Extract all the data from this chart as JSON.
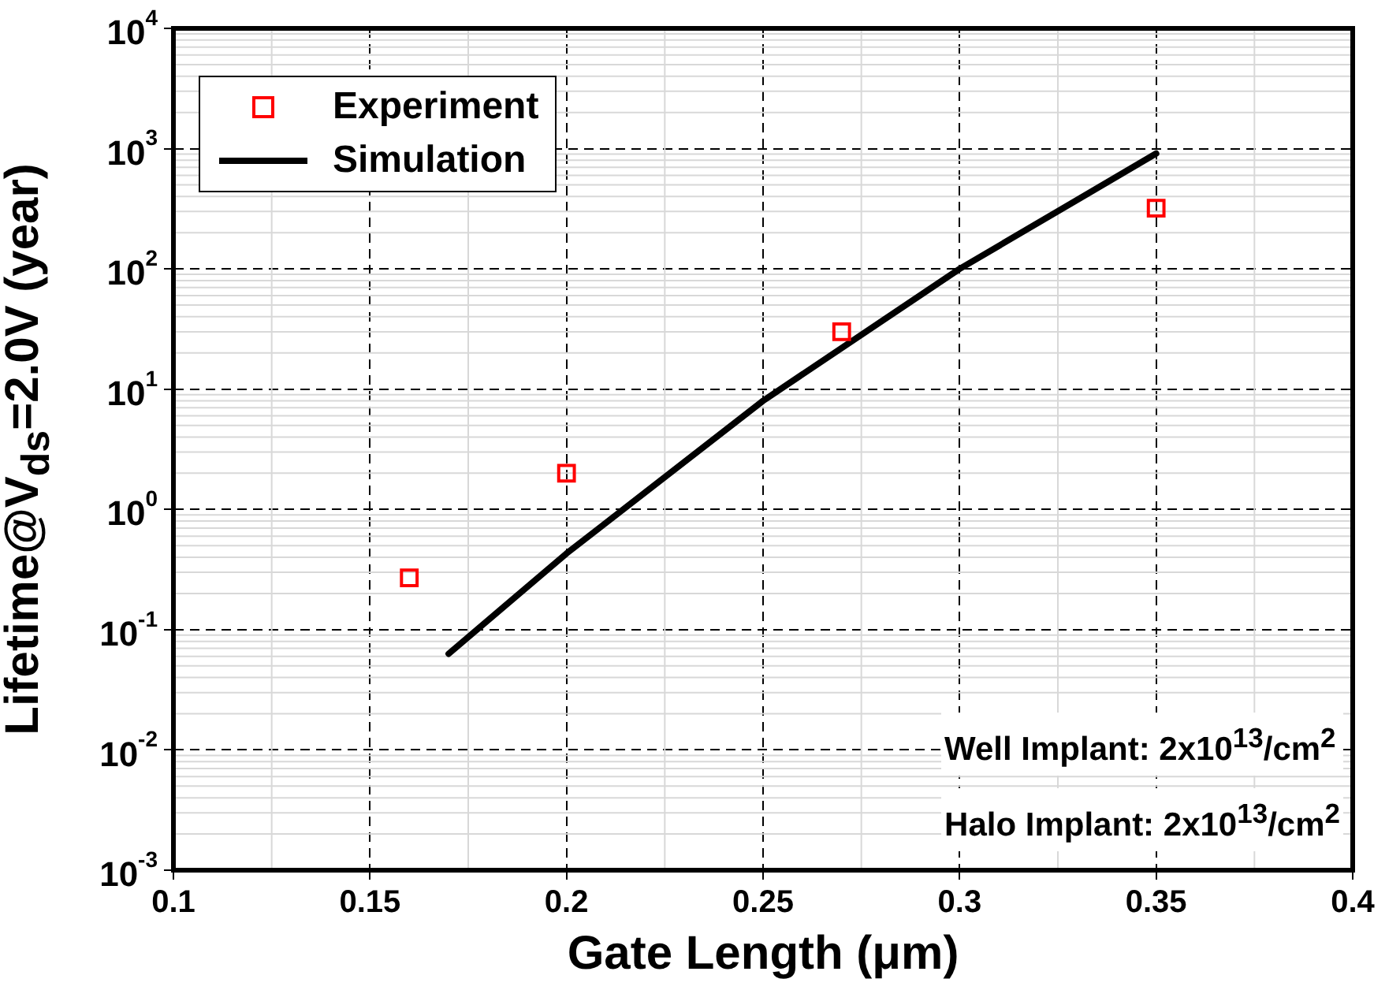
{
  "chart_data": {
    "type": "scatter",
    "xlabel": "Gate Length (μm)",
    "ylabel": "Lifetime@V$_{ds}$=2.0V (year)",
    "xlim": [
      0.1,
      0.4
    ],
    "xticks": [
      0.1,
      0.15,
      0.2,
      0.25,
      0.3,
      0.35,
      0.4
    ],
    "ylim": [
      0.001,
      10000
    ],
    "yticks": [
      {
        "value": 0.001,
        "label": "10$^{-3}$"
      },
      {
        "value": 0.01,
        "label": "10$^{-2}$"
      },
      {
        "value": 0.1,
        "label": "10$^{-1}$"
      },
      {
        "value": 1,
        "label": "10$^{0}$"
      },
      {
        "value": 10,
        "label": "10$^{1}$"
      },
      {
        "value": 100,
        "label": "10$^{2}$"
      },
      {
        "value": 1000,
        "label": "10$^{3}$"
      },
      {
        "value": 10000,
        "label": "10$^{4}$"
      }
    ],
    "log": "y",
    "grid": true,
    "legend": "top left",
    "series": [
      {
        "name": "Experiment",
        "type": "scatter",
        "marker": "square",
        "color": "#ff0000",
        "x": [
          0.16,
          0.2,
          0.27,
          0.35
        ],
        "values": [
          0.27,
          2,
          30,
          320
        ]
      },
      {
        "name": "Simulation",
        "type": "line",
        "marker": "none",
        "line_style": "solid",
        "color": "#000000",
        "x": [
          0.17,
          0.2,
          0.25,
          0.3,
          0.35
        ],
        "values": [
          0.063,
          0.43,
          8,
          100,
          910
        ]
      }
    ],
    "annotations": [
      "Well Implant: 2x10$^{13}$/cm$^{2}$",
      "Halo Implant: 2x10$^{13}$/cm$^{2}$"
    ]
  }
}
